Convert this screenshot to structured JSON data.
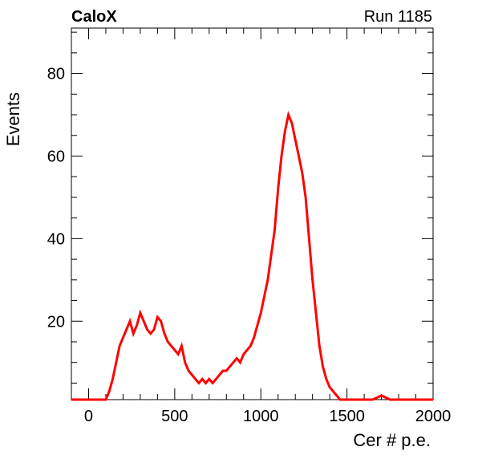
{
  "header": {
    "experiment": "CaloX",
    "run": "Run 1185"
  },
  "chart_data": {
    "type": "line",
    "title": "",
    "xlabel": "Cer # p.e.",
    "ylabel": "Events",
    "xlim": [
      -100,
      2000
    ],
    "ylim": [
      1,
      91
    ],
    "x_ticks": [
      0,
      500,
      1000,
      1500,
      2000
    ],
    "x_tick_labels": [
      "0",
      "500",
      "1000",
      "1500",
      "2000"
    ],
    "y_ticks": [
      20,
      40,
      60,
      80
    ],
    "y_tick_labels": [
      "20",
      "40",
      "60",
      "80"
    ],
    "grid": false,
    "line_color": "#ff0000",
    "series": [
      {
        "x": [
          -100,
          100,
          120,
          140,
          160,
          180,
          200,
          220,
          240,
          260,
          280,
          300,
          320,
          340,
          360,
          380,
          400,
          420,
          440,
          460,
          480,
          500,
          520,
          540,
          560,
          580,
          600,
          620,
          640,
          660,
          680,
          700,
          720,
          740,
          760,
          780,
          800,
          820,
          840,
          860,
          880,
          900,
          920,
          940,
          960,
          980,
          1000,
          1020,
          1040,
          1060,
          1080,
          1100,
          1120,
          1140,
          1160,
          1180,
          1200,
          1220,
          1240,
          1260,
          1280,
          1300,
          1320,
          1340,
          1360,
          1380,
          1400,
          1420,
          1440,
          1460,
          1480,
          1500,
          1550,
          1600,
          1650,
          1700,
          1750,
          1800,
          1900,
          2000
        ],
        "y": [
          1,
          1,
          3,
          6,
          10,
          14,
          16,
          18,
          20,
          17,
          19,
          22,
          20,
          18,
          17,
          18,
          21,
          20,
          17,
          15,
          14,
          13,
          12,
          14,
          10,
          8,
          7,
          6,
          5,
          6,
          5,
          6,
          5,
          6,
          7,
          8,
          8,
          9,
          10,
          11,
          10,
          12,
          13,
          14,
          16,
          19,
          22,
          26,
          30,
          36,
          42,
          52,
          60,
          66,
          70,
          68,
          64,
          60,
          56,
          50,
          40,
          30,
          22,
          14,
          9,
          6,
          4,
          3,
          2,
          1,
          1,
          1,
          1,
          1,
          1,
          2,
          1,
          1,
          1,
          1
        ]
      }
    ]
  }
}
